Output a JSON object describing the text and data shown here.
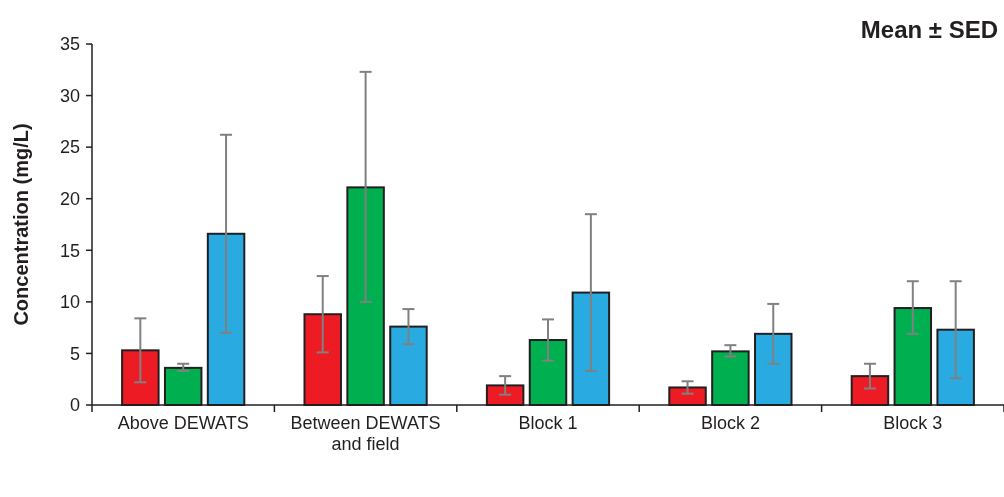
{
  "chart_data": {
    "type": "bar",
    "title": "Mean ± SED",
    "ylabel": "Concentration (mg/L)",
    "categories": [
      "Above DEWATS",
      "Between DEWATS and field",
      "Block 1",
      "Block 2",
      "Block 3"
    ],
    "series": [
      {
        "color": "#ed1c24",
        "values": [
          5.3,
          8.8,
          1.9,
          1.7,
          2.8
        ],
        "errors": [
          [
            2.2,
            8.4
          ],
          [
            5.1,
            12.5
          ],
          [
            1.0,
            2.8
          ],
          [
            1.1,
            2.3
          ],
          [
            1.6,
            4.0
          ]
        ]
      },
      {
        "color": "#00b050",
        "values": [
          3.6,
          21.1,
          6.3,
          5.2,
          9.4
        ],
        "errors": [
          [
            3.3,
            4.0
          ],
          [
            10.0,
            32.3
          ],
          [
            4.3,
            8.3
          ],
          [
            4.7,
            5.8
          ],
          [
            6.9,
            12.0
          ]
        ]
      },
      {
        "color": "#29abe2",
        "values": [
          16.6,
          7.6,
          10.9,
          6.9,
          7.3
        ],
        "errors": [
          [
            7.0,
            26.2
          ],
          [
            5.9,
            9.3
          ],
          [
            3.3,
            18.5
          ],
          [
            4.0,
            9.8
          ],
          [
            2.6,
            12.0
          ]
        ]
      }
    ],
    "ylim": [
      0,
      35
    ],
    "yticks": [
      0,
      5,
      10,
      15,
      20,
      25,
      30,
      35
    ]
  }
}
